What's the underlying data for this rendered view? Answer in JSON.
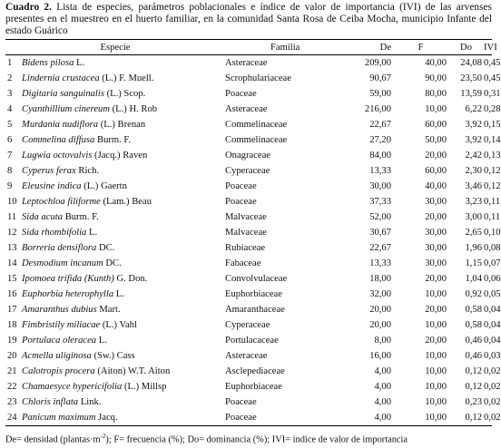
{
  "caption": {
    "label": "Cuadro 2.",
    "text": "Lista de especies, parámetros poblacionales e índice de valor de importancia (IVI) de las arvenses presentes en el muestreo en el huerto familiar, en la comunidad Santa Rosa de Ceiba Mocha, municipio Infante del estado Guárico"
  },
  "table": {
    "headers": [
      "Especie",
      "Familia",
      "De",
      "F",
      "Do",
      "IVI"
    ],
    "rows": [
      {
        "n": "1",
        "name": "Bidens pilosa",
        "author": "L.",
        "family": "Asteraceae",
        "values": [
          "209,00",
          "40,00",
          "24,08",
          "0,45"
        ]
      },
      {
        "n": "2",
        "name": "Lindernia crustacea",
        "author": "(L.) F. Muell.",
        "family": "Scrophulariaceae",
        "values": [
          "90,67",
          "90,00",
          "23,50",
          "0,45"
        ]
      },
      {
        "n": "3",
        "name": "Digitaria sanguinalis",
        "author": "(L.) Scop.",
        "family": "Poaceae",
        "values": [
          "59,00",
          "80,00",
          "13,59",
          "0,31"
        ]
      },
      {
        "n": "4",
        "name": "Cyanthillium cinereum",
        "author": "(L.) H. Rob",
        "family": "Asteraceae",
        "values": [
          "216,00",
          "10,00",
          "6,22",
          "0,28"
        ]
      },
      {
        "n": "5",
        "name": "Murdania nudiflora",
        "author": "(L.) Brenan",
        "family": "Commelinaceae",
        "values": [
          "22,67",
          "60,00",
          "3,92",
          "0,15"
        ]
      },
      {
        "n": "6",
        "name": "Commelina diffusa",
        "author": "Burm. F.",
        "family": "Commelinaceae",
        "values": [
          "27,20",
          "50,00",
          "3,92",
          "0,14"
        ]
      },
      {
        "n": "7",
        "name": "Lugwia octovalvis",
        "author": "(Jacq.) Raven",
        "family": "Onagraceae",
        "values": [
          "84,00",
          "20,00",
          "2,42",
          "0,13"
        ]
      },
      {
        "n": "8",
        "name": "Cyperus ferax",
        "author": "Rich.",
        "family": "Cyperaceae",
        "values": [
          "13,33",
          "60,00",
          "2,30",
          "0,12"
        ]
      },
      {
        "n": "9",
        "name": "Eleusine indica",
        "author": "(L.) Gaertn",
        "family": "Poaceae",
        "values": [
          "30,00",
          "40,00",
          "3,46",
          "0,12"
        ]
      },
      {
        "n": "10",
        "name": "Leptochloa filiforme",
        "author": "(Lam.) Beau",
        "family": "Poaceae",
        "values": [
          "37,33",
          "30,00",
          "3,23",
          "0,11"
        ]
      },
      {
        "n": "11",
        "name": "Sida acuta",
        "author": "Burm. F.",
        "family": "Malvaceae",
        "values": [
          "52,00",
          "20,00",
          "3,00",
          "0,11"
        ]
      },
      {
        "n": "12",
        "name": "Sida rhombifolia",
        "author": "L.",
        "family": "Malvaceae",
        "values": [
          "30,67",
          "30,00",
          "2,65",
          "0,10"
        ]
      },
      {
        "n": "13",
        "name": "Borreria densiflora",
        "author": "DC.",
        "family": "Rubiaceae",
        "values": [
          "22,67",
          "30,00",
          "1,96",
          "0,08"
        ]
      },
      {
        "n": "14",
        "name": "Desmodium incanum",
        "author": "DC.",
        "family": "Fabaceae",
        "values": [
          "13,33",
          "30,00",
          "1,15",
          "0,07"
        ]
      },
      {
        "n": "15",
        "name": "Ipomoea trifida (Kunth)",
        "author": "G. Don.",
        "family": "Convolvulaceae",
        "values": [
          "18,00",
          "20,00",
          "1,04",
          "0,06"
        ]
      },
      {
        "n": "16",
        "name": "Euphorbia heterophylla",
        "author": "L.",
        "family": "Euphorbiaceae",
        "values": [
          "32,00",
          "10,00",
          "0,92",
          "0,05"
        ]
      },
      {
        "n": "17",
        "name": "Amaranthus dubius",
        "author": "Mart.",
        "family": "Amaranthaceae",
        "values": [
          "20,00",
          "20,00",
          "0,58",
          "0,04"
        ]
      },
      {
        "n": "18",
        "name": "Fimbristily miliacae",
        "author": "(L.) Vahl",
        "family": "Cyperaceae",
        "values": [
          "20,00",
          "10,00",
          "0,58",
          "0,04"
        ]
      },
      {
        "n": "19",
        "name": "Portulaca oleracea",
        "author": "L.",
        "family": "Portulacaceae",
        "values": [
          "8,00",
          "20,00",
          "0,46",
          "0,04"
        ]
      },
      {
        "n": "20",
        "name": "Acmella uliginosa",
        "author": "(Sw.) Cass",
        "family": "Asteraceae",
        "values": [
          "16,00",
          "10,00",
          "0,46",
          "0,03"
        ]
      },
      {
        "n": "21",
        "name": "Calotropis procera",
        "author": "(Aiton) W.T. Aiton",
        "family": "Asclepediaceae",
        "values": [
          "4,00",
          "10,00",
          "0,12",
          "0,02"
        ]
      },
      {
        "n": "22",
        "name": "Chamaesyce hypericifolia",
        "author": "(L.) Millsp",
        "family": "Euphorbiaceae",
        "values": [
          "4,00",
          "10,00",
          "0,12",
          "0,02"
        ]
      },
      {
        "n": "23",
        "name": "Chloris inflata",
        "author": "Link.",
        "family": "Poaceae",
        "values": [
          "4,00",
          "10,00",
          "0,23",
          "0,02"
        ]
      },
      {
        "n": "24",
        "name": "Panicum maximum",
        "author": "Jacq.",
        "family": "Poaceae",
        "values": [
          "4,00",
          "10,00",
          "0,12",
          "0,02"
        ]
      }
    ]
  },
  "footnote": {
    "before": "De= densidad (plantas·m",
    "sup": "-2",
    "after": "); F= frecuencia (%); Do= dominancia (%); IVI= índice de valor de importancia"
  }
}
